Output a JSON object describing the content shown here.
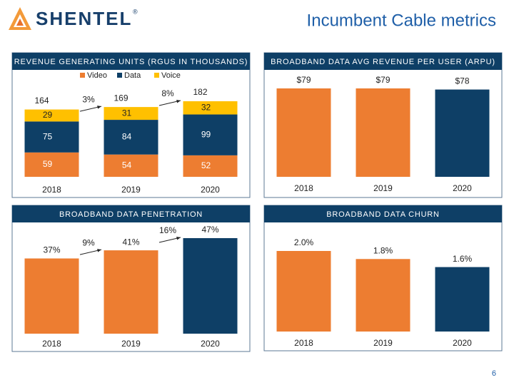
{
  "logo": "SHENTEL",
  "logo_mark": "®",
  "title": "Incumbent Cable metrics",
  "page_number": "6",
  "chart_data": [
    {
      "type": "stacked_bar",
      "title": "REVENUE GENERATING UNITS (RGUS IN THOUSANDS)",
      "categories": [
        "2018",
        "2019",
        "2020"
      ],
      "series": [
        {
          "name": "Video",
          "color": "#ED7D31",
          "values": [
            59,
            54,
            52
          ]
        },
        {
          "name": "Data",
          "color": "#0E3F66",
          "values": [
            75,
            84,
            99
          ]
        },
        {
          "name": "Voice",
          "color": "#FFC000",
          "values": [
            29,
            31,
            32
          ]
        }
      ],
      "totals": [
        164,
        169,
        182
      ],
      "annotations": [
        "3%",
        "8%"
      ]
    },
    {
      "type": "bar",
      "title": "BROADBAND DATA AVG REVENUE PER USER (ARPU)",
      "categories": [
        "2018",
        "2019",
        "2020"
      ],
      "values": [
        79,
        79,
        78
      ],
      "value_labels": [
        "$79",
        "$79",
        "$78"
      ],
      "colors": [
        "#ED7D31",
        "#ED7D31",
        "#0E3F66"
      ]
    },
    {
      "type": "bar",
      "title": "BROADBAND DATA PENETRATION",
      "categories": [
        "2018",
        "2019",
        "2020"
      ],
      "values": [
        37,
        41,
        47
      ],
      "value_labels": [
        "37%",
        "41%",
        "47%"
      ],
      "colors": [
        "#ED7D31",
        "#ED7D31",
        "#0E3F66"
      ],
      "annotations": [
        "9%",
        "16%"
      ]
    },
    {
      "type": "bar",
      "title": "BROADBAND DATA CHURN",
      "categories": [
        "2018",
        "2019",
        "2020"
      ],
      "values": [
        2.0,
        1.8,
        1.6
      ],
      "value_labels": [
        "2.0%",
        "1.8%",
        "1.6%"
      ],
      "colors": [
        "#ED7D31",
        "#ED7D31",
        "#0E3F66"
      ]
    }
  ]
}
